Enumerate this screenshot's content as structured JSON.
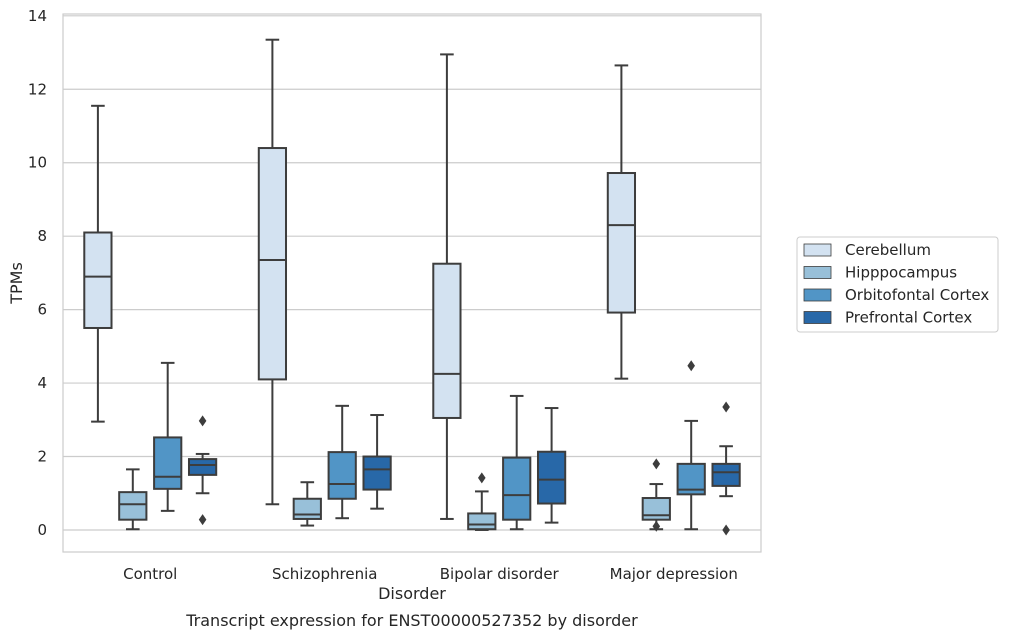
{
  "caption": "Transcript expression for ENST00000527352 by disorder",
  "chart_data": {
    "type": "box",
    "xlabel": "Disorder",
    "ylabel": "TPMs",
    "ylim": [
      -0.6,
      14.05
    ],
    "yticks": [
      0,
      2,
      4,
      6,
      8,
      10,
      12,
      14
    ],
    "grid": "horizontal",
    "legend_position": "right",
    "categories": [
      "Control",
      "Schizophrenia",
      "Bipolar disorder",
      "Major depression"
    ],
    "series": [
      {
        "name": "Cerebellum",
        "color": "#d3e2f1",
        "boxes": [
          {
            "whislo": 2.95,
            "q1": 5.5,
            "med": 6.9,
            "q3": 8.1,
            "whishi": 11.55,
            "fliers": []
          },
          {
            "whislo": 0.7,
            "q1": 4.1,
            "med": 7.35,
            "q3": 10.4,
            "whishi": 13.35,
            "fliers": []
          },
          {
            "whislo": 0.3,
            "q1": 3.05,
            "med": 4.25,
            "q3": 7.25,
            "whishi": 12.95,
            "fliers": []
          },
          {
            "whislo": 4.12,
            "q1": 5.92,
            "med": 8.3,
            "q3": 9.72,
            "whishi": 12.65,
            "fliers": []
          }
        ]
      },
      {
        "name": "Hipppocampus",
        "color": "#98c0d9",
        "boxes": [
          {
            "whislo": 0.02,
            "q1": 0.28,
            "med": 0.7,
            "q3": 1.03,
            "whishi": 1.65,
            "fliers": []
          },
          {
            "whislo": 0.12,
            "q1": 0.3,
            "med": 0.42,
            "q3": 0.85,
            "whishi": 1.3,
            "fliers": []
          },
          {
            "whislo": 0.0,
            "q1": 0.02,
            "med": 0.15,
            "q3": 0.45,
            "whishi": 1.05,
            "fliers": [
              1.42
            ]
          },
          {
            "whislo": 0.02,
            "q1": 0.28,
            "med": 0.4,
            "q3": 0.87,
            "whishi": 1.25,
            "fliers": [
              0.1,
              1.8
            ]
          }
        ]
      },
      {
        "name": "Orbitofontal Cortex",
        "color": "#5195c6",
        "boxes": [
          {
            "whislo": 0.52,
            "q1": 1.12,
            "med": 1.45,
            "q3": 2.52,
            "whishi": 4.55,
            "fliers": []
          },
          {
            "whislo": 0.32,
            "q1": 0.85,
            "med": 1.25,
            "q3": 2.12,
            "whishi": 3.38,
            "fliers": []
          },
          {
            "whislo": 0.02,
            "q1": 0.28,
            "med": 0.95,
            "q3": 1.97,
            "whishi": 3.65,
            "fliers": []
          },
          {
            "whislo": 0.02,
            "q1": 0.97,
            "med": 1.1,
            "q3": 1.8,
            "whishi": 2.97,
            "fliers": [
              4.47
            ]
          }
        ]
      },
      {
        "name": "Prefrontal Cortex",
        "color": "#2868a8",
        "boxes": [
          {
            "whislo": 1.0,
            "q1": 1.5,
            "med": 1.77,
            "q3": 1.93,
            "whishi": 2.07,
            "fliers": [
              0.28,
              2.97
            ]
          },
          {
            "whislo": 0.58,
            "q1": 1.1,
            "med": 1.65,
            "q3": 2.0,
            "whishi": 3.13,
            "fliers": []
          },
          {
            "whislo": 0.2,
            "q1": 0.72,
            "med": 1.37,
            "q3": 2.13,
            "whishi": 3.32,
            "fliers": []
          },
          {
            "whislo": 0.92,
            "q1": 1.2,
            "med": 1.57,
            "q3": 1.8,
            "whishi": 2.28,
            "fliers": [
              0.0,
              3.35
            ]
          }
        ]
      }
    ]
  }
}
